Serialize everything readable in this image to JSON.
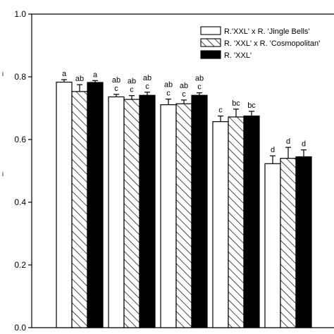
{
  "chart_data": {
    "type": "bar",
    "title": "",
    "xlabel": "",
    "ylabel": "",
    "ylim": [
      0.0,
      1.0
    ],
    "yticks": [
      "0.0",
      "0.2",
      "0.4",
      "0.6",
      "0.8",
      "1.0"
    ],
    "ylabel_fragments": [
      "i",
      "i"
    ],
    "groups": 5,
    "series": [
      {
        "name": "R.'XXL' x R. 'Jingle Bells'",
        "fill": "#ffffff",
        "pattern": "none",
        "values": [
          0.783,
          0.736,
          0.711,
          0.657,
          0.523
        ],
        "errors": [
          0.008,
          0.008,
          0.018,
          0.018,
          0.025
        ],
        "letters": [
          "a",
          "ab\nc",
          "ab\nc",
          "c",
          "d"
        ]
      },
      {
        "name": "R. 'XXL' x R. 'Cosmopolitan'",
        "fill": "#ffffff",
        "pattern": "diagonal-hatch",
        "values": [
          0.753,
          0.728,
          0.714,
          0.672,
          0.54
        ],
        "errors": [
          0.022,
          0.012,
          0.012,
          0.025,
          0.035
        ],
        "letters": [
          "ab",
          "ab\nc",
          "ab\nc",
          "bc",
          "d"
        ]
      },
      {
        "name": "R. 'XXL'",
        "fill": "#000000",
        "pattern": "none",
        "values": [
          0.782,
          0.741,
          0.741,
          0.675,
          0.545
        ],
        "errors": [
          0.006,
          0.01,
          0.008,
          0.015,
          0.022
        ],
        "letters": [
          "a",
          "ab\nc",
          "ab\nc",
          "bc",
          "d"
        ]
      }
    ],
    "legend_position": "top-right",
    "grid": false
  }
}
